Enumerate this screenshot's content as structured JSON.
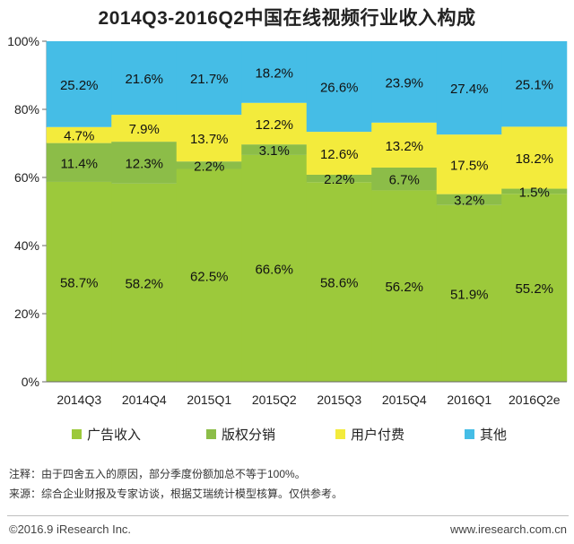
{
  "title": "2014Q3-2016Q2中国在线视频行业收入构成",
  "chart_data": {
    "type": "bar",
    "stacked": true,
    "ylim": [
      0,
      100
    ],
    "yticks": [
      "0%",
      "20%",
      "40%",
      "60%",
      "80%",
      "100%"
    ],
    "categories": [
      "2014Q3",
      "2014Q4",
      "2015Q1",
      "2015Q2",
      "2015Q3",
      "2015Q4",
      "2016Q1",
      "2016Q2e"
    ],
    "series": [
      {
        "name": "广告收入",
        "color": "#9cc93b",
        "values": [
          58.7,
          58.2,
          62.5,
          66.6,
          58.6,
          56.2,
          51.9,
          55.2
        ],
        "labels": [
          "58.7%",
          "58.2%",
          "62.5%",
          "66.6%",
          "58.6%",
          "56.2%",
          "51.9%",
          "55.2%"
        ]
      },
      {
        "name": "版权分销",
        "color": "#8cbd48",
        "values": [
          11.4,
          12.3,
          2.2,
          3.1,
          2.2,
          6.7,
          3.2,
          1.5
        ],
        "labels": [
          "11.4%",
          "12.3%",
          "2.2%",
          "3.1%",
          "2.2%",
          "6.7%",
          "3.2%",
          "1.5%"
        ]
      },
      {
        "name": "用户付费",
        "color": "#f3eb3c",
        "values": [
          4.7,
          7.9,
          13.7,
          12.2,
          12.6,
          13.2,
          17.5,
          18.2
        ],
        "labels": [
          "4.7%",
          "7.9%",
          "13.7%",
          "12.2%",
          "12.6%",
          "13.2%",
          "17.5%",
          "18.2%"
        ]
      },
      {
        "name": "其他",
        "color": "#45bde6",
        "values": [
          25.2,
          21.6,
          21.7,
          18.2,
          26.6,
          23.9,
          27.4,
          25.1
        ],
        "labels": [
          "25.2%",
          "21.6%",
          "21.7%",
          "18.2%",
          "26.6%",
          "23.9%",
          "27.4%",
          "25.1%"
        ]
      }
    ],
    "legend_position": "bottom",
    "grid": false
  },
  "notes": {
    "note1": "注释：由于四舍五入的原因，部分季度份额加总不等于100%。",
    "note2": "来源：综合企业财报及专家访谈，根据艾瑞统计模型核算。仅供参考。"
  },
  "footer": {
    "copyright": "©2016.9 iResearch Inc.",
    "website": "www.iresearch.com.cn"
  }
}
